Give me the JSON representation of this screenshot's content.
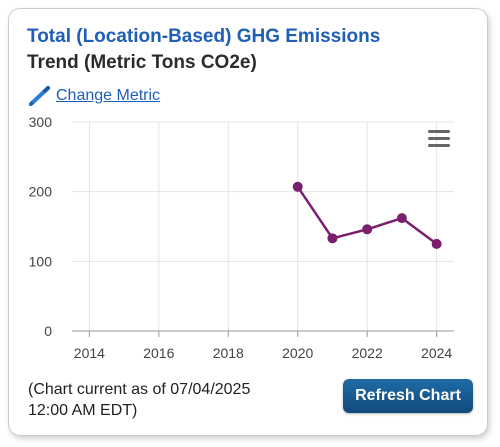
{
  "widget": {
    "title_line1": "Total (Location-Based) GHG Emissions",
    "title_line2": "Trend (Metric Tons CO2e)",
    "change_metric_label": "Change Metric",
    "change_metric_icon": "pencil-icon",
    "menu_icon": "hamburger-menu-icon",
    "footer_line1": "(Chart current as of 07/04/2025",
    "footer_line2": "12:00 AM EDT)",
    "refresh_label": "Refresh Chart",
    "colors": {
      "title": "#1f5fb8",
      "series": "#7a1f6e",
      "button": "#1a5a92"
    }
  },
  "chart_data": {
    "type": "line",
    "title": "",
    "xlabel": "",
    "ylabel": "",
    "xlim": [
      2013.5,
      2024.5
    ],
    "ylim": [
      0,
      300
    ],
    "x_ticks": [
      2014,
      2016,
      2018,
      2020,
      2022,
      2024
    ],
    "y_ticks": [
      0,
      100,
      200,
      300
    ],
    "grid": true,
    "series": [
      {
        "x": [
          2020,
          2021,
          2022,
          2023,
          2024
        ],
        "values": [
          207,
          133,
          146,
          162,
          125
        ]
      }
    ]
  }
}
